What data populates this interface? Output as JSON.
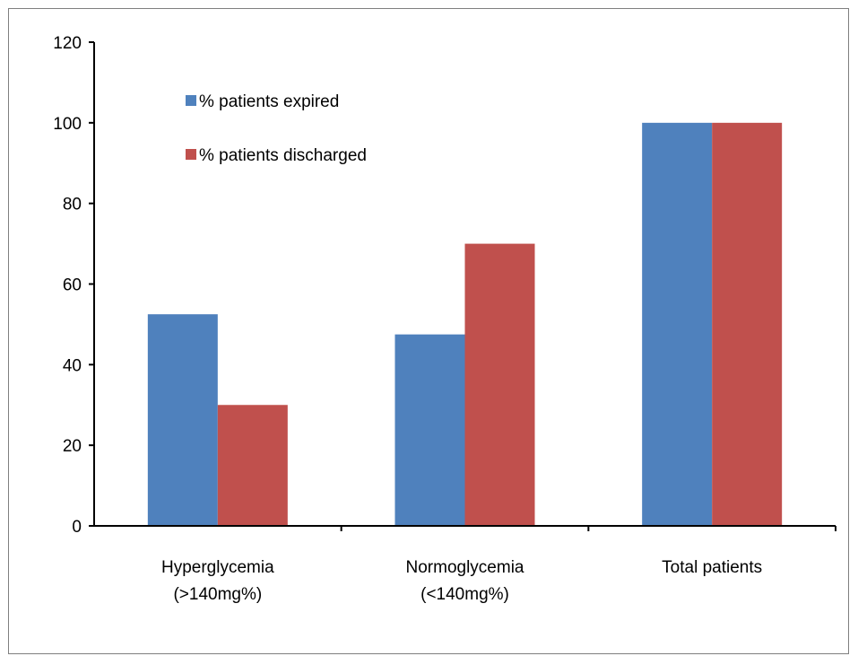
{
  "chart_data": {
    "type": "bar",
    "categories": [
      [
        "Hyperglycemia",
        "(>140mg%)"
      ],
      [
        "Normoglycemia",
        "(<140mg%)"
      ],
      [
        "Total patients"
      ]
    ],
    "series": [
      {
        "name": "% patients expired",
        "color": "#4F81BD",
        "values": [
          52.5,
          47.5,
          100
        ]
      },
      {
        "name": "% patients discharged",
        "color": "#C0504D",
        "values": [
          30,
          70,
          100
        ]
      }
    ],
    "ylim": [
      0,
      120
    ],
    "yticks": [
      0,
      20,
      40,
      60,
      80,
      100,
      120
    ],
    "title": "",
    "xlabel": "",
    "ylabel": "",
    "grid": false,
    "legend_position": "top-left"
  }
}
